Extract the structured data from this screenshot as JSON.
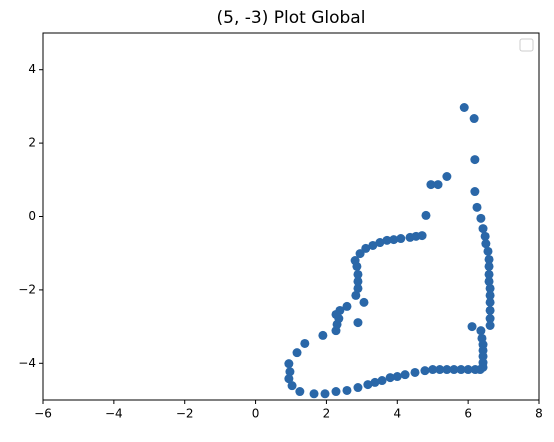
{
  "chart_data": {
    "type": "scatter",
    "title": "(5, -3) Plot Global",
    "series": [
      {
        "color": "#2a67a8",
        "x": [
          5.89,
          6.17,
          6.19,
          6.19,
          6.25,
          6.36,
          6.42,
          6.48,
          6.5,
          6.56,
          6.59,
          6.59,
          6.59,
          6.59,
          6.62,
          6.62,
          6.62,
          6.62,
          6.62,
          6.62,
          6.36,
          6.39,
          6.42,
          6.42,
          6.42,
          6.42,
          6.42,
          6.11,
          6.34,
          6.2,
          6.0,
          5.8,
          5.6,
          5.4,
          5.2,
          5.0,
          4.78,
          4.5,
          4.22,
          4.0,
          3.8,
          3.57,
          3.37,
          3.17,
          2.89,
          2.58,
          2.27,
          1.96,
          1.65,
          1.25,
          1.03,
          0.94,
          0.97,
          0.94,
          1.17,
          1.39,
          1.9,
          2.27,
          2.3,
          2.35,
          2.27,
          2.38,
          2.58,
          3.06,
          2.89,
          2.83,
          2.89,
          2.89,
          2.89,
          2.86,
          2.81,
          2.95,
          3.11,
          3.31,
          3.51,
          3.71,
          3.9,
          4.1,
          4.36,
          4.53,
          4.7,
          4.81,
          4.95,
          5.15,
          5.4
        ],
        "values": [
          2.97,
          2.67,
          1.55,
          0.68,
          0.25,
          -0.05,
          -0.33,
          -0.54,
          -0.74,
          -0.95,
          -1.17,
          -1.36,
          -1.58,
          -1.77,
          -1.96,
          -2.15,
          -2.34,
          -2.56,
          -2.78,
          -2.97,
          -3.11,
          -3.32,
          -3.49,
          -3.65,
          -3.81,
          -3.98,
          -4.11,
          -3.0,
          -4.17,
          -4.17,
          -4.17,
          -4.17,
          -4.17,
          -4.17,
          -4.17,
          -4.17,
          -4.2,
          -4.25,
          -4.31,
          -4.36,
          -4.39,
          -4.47,
          -4.52,
          -4.58,
          -4.66,
          -4.74,
          -4.77,
          -4.83,
          -4.83,
          -4.77,
          -4.61,
          -4.42,
          -4.23,
          -4.01,
          -3.71,
          -3.46,
          -3.24,
          -3.11,
          -2.94,
          -2.78,
          -2.67,
          -2.56,
          -2.45,
          -2.34,
          -2.89,
          -2.15,
          -1.96,
          -1.77,
          -1.58,
          -1.36,
          -1.2,
          -1.01,
          -0.87,
          -0.79,
          -0.71,
          -0.65,
          -0.63,
          -0.6,
          -0.57,
          -0.54,
          -0.52,
          0.03,
          0.87,
          0.87,
          1.09
        ]
      }
    ],
    "xlim": [
      -6,
      8
    ],
    "ylim": [
      -5,
      5
    ],
    "xticks": [
      {
        "value": -6,
        "label": "−6"
      },
      {
        "value": -4,
        "label": "−4"
      },
      {
        "value": -2,
        "label": "−2"
      },
      0,
      2,
      4,
      6,
      8
    ],
    "yticks": [
      {
        "value": -4,
        "label": "−4"
      },
      {
        "value": -2,
        "label": "−2"
      },
      0,
      2,
      4
    ],
    "grid": false
  }
}
